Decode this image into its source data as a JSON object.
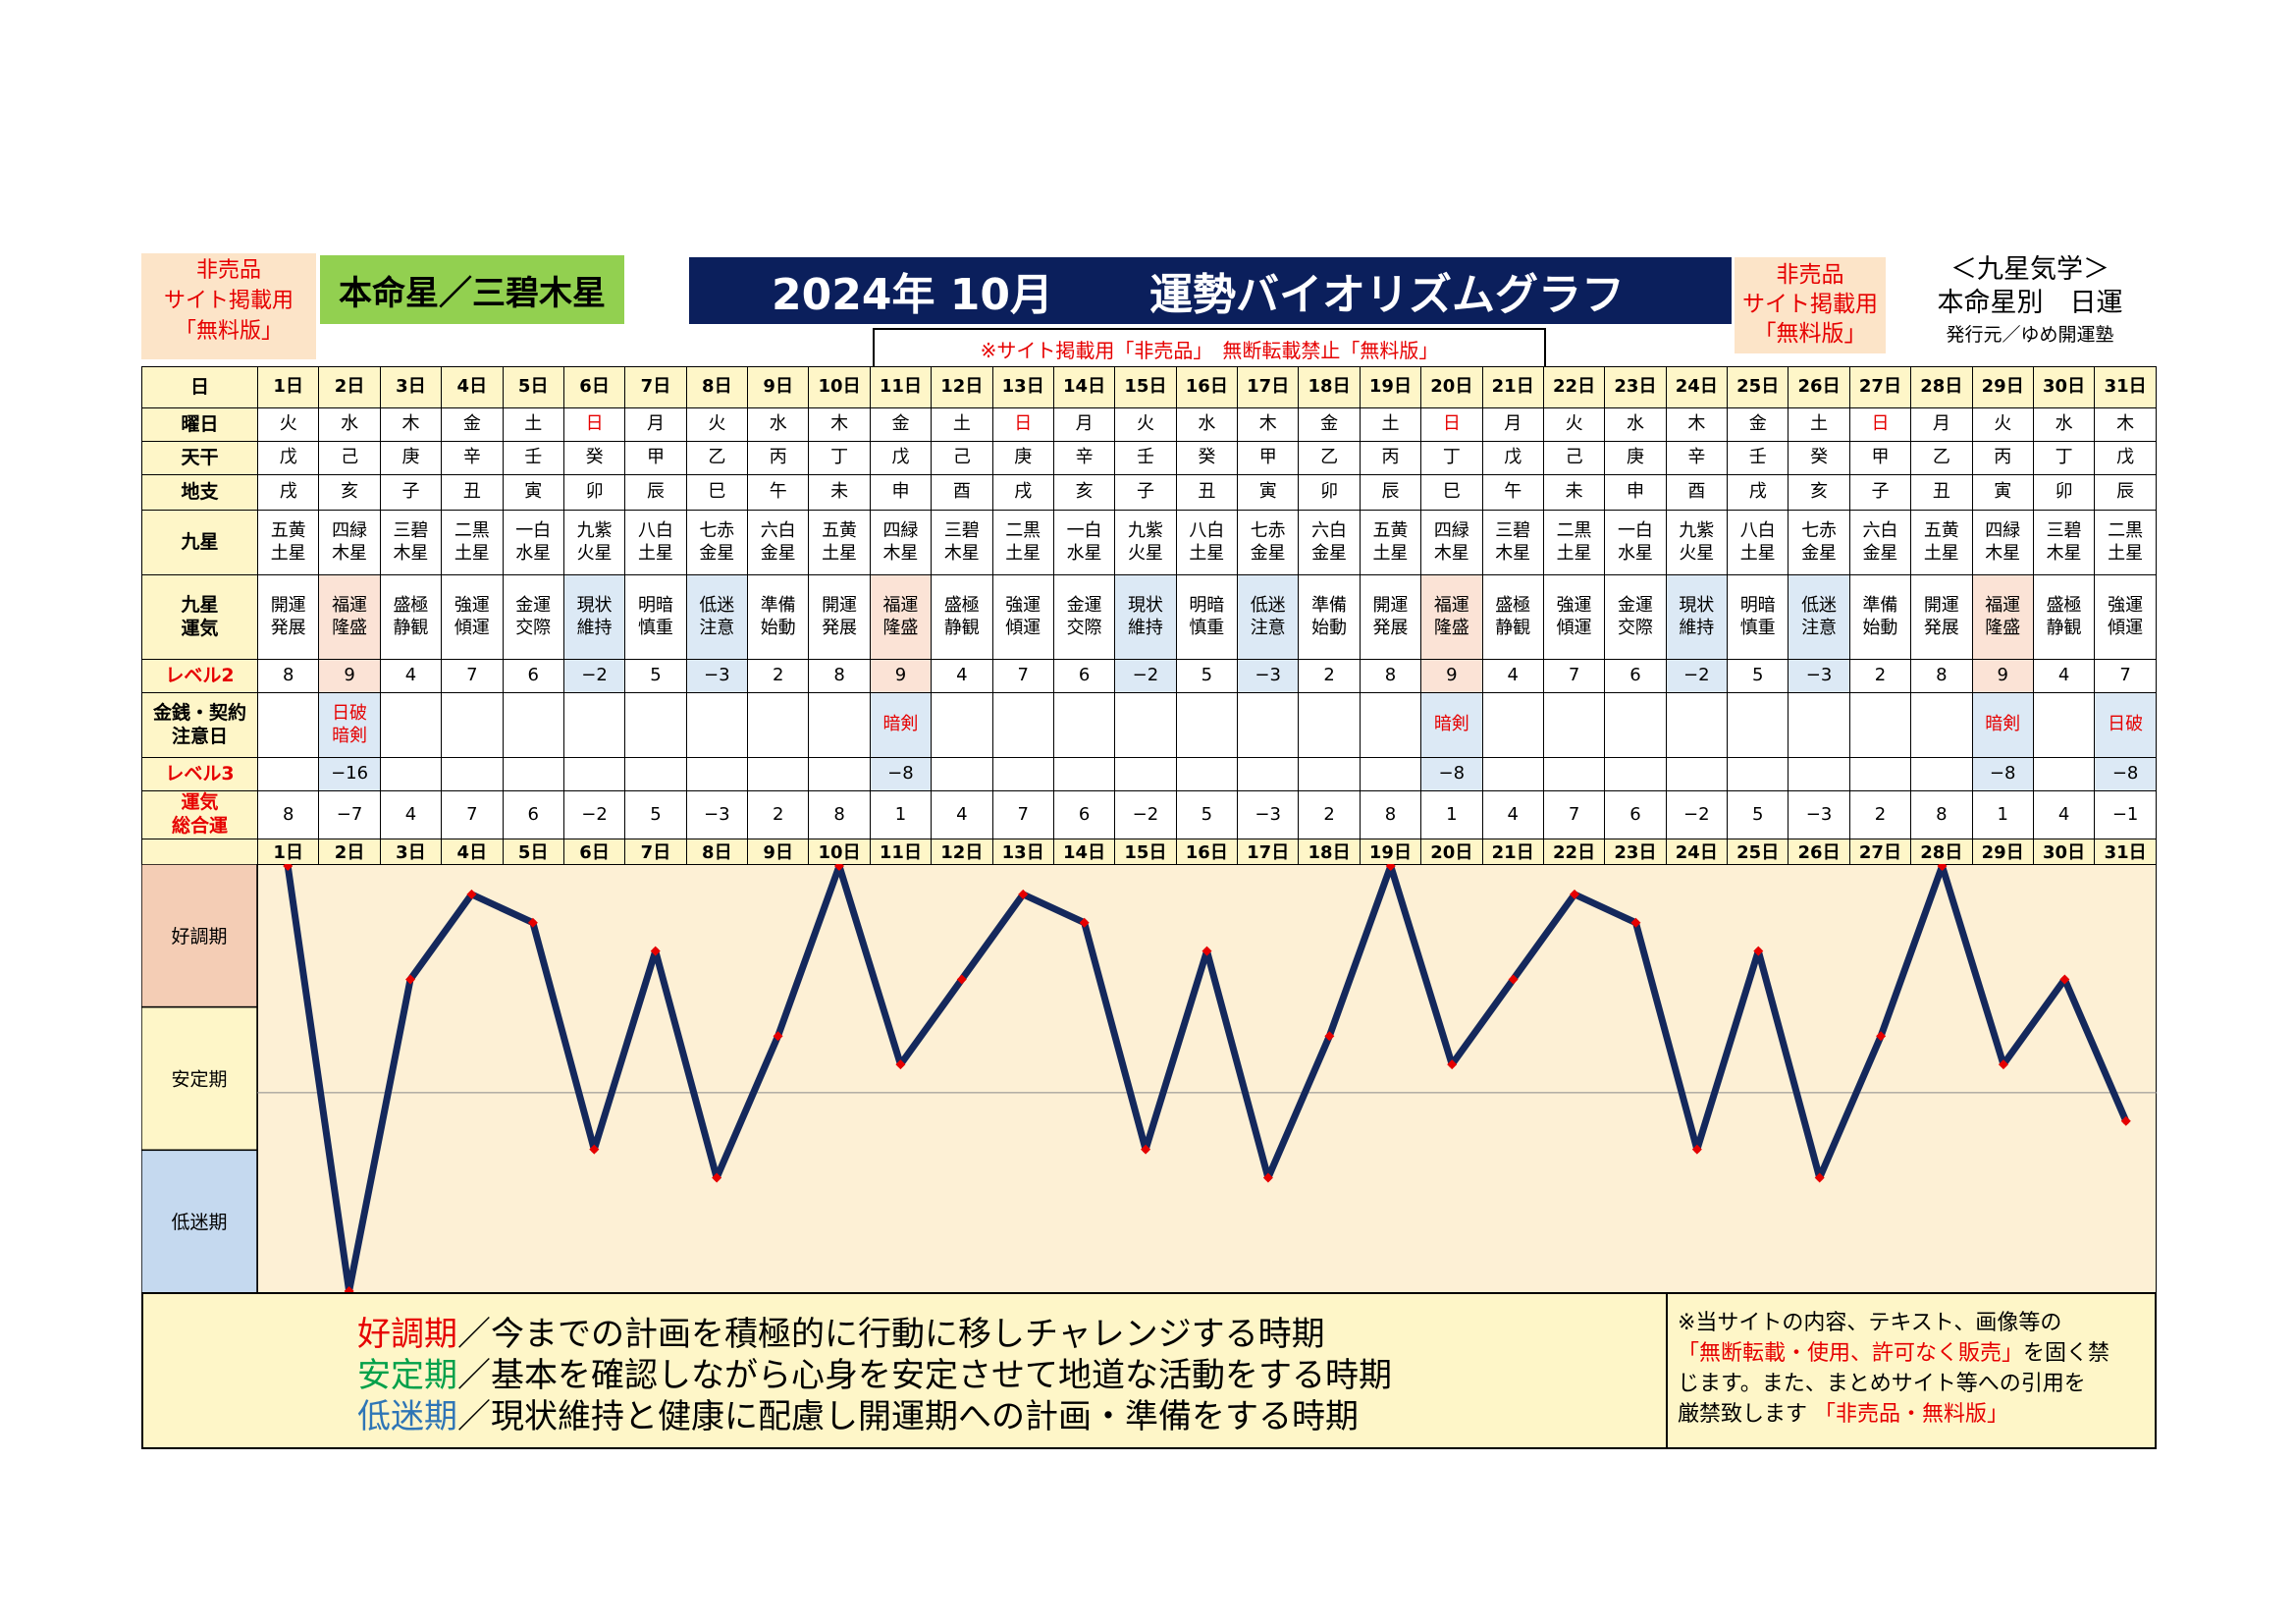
{
  "header": {
    "left_note": [
      "非売品",
      "サイト掲載用",
      "「無料版」"
    ],
    "honmei": "本命星／三碧木星",
    "title_year": "2024年 10月",
    "title_main": "運勢バイオリズムグラフ",
    "notice": "※サイト掲載用「非売品」　無断転載禁止「無料版」",
    "right_note": [
      "非売品",
      "サイト掲載用",
      "「無料版」"
    ],
    "corner": [
      "＜九星気学＞",
      "本命星別　日運",
      "発行元／ゆめ開運塾"
    ]
  },
  "row_labels": {
    "day": "日",
    "weekday": "曜日",
    "tenkan": "天干",
    "chishi": "地支",
    "kusei": "九星",
    "kusei_unki": [
      "九星",
      "運気"
    ],
    "level2": "レベル2",
    "kinsen": [
      "金銭・契約",
      "注意日"
    ],
    "level3": "レベル3",
    "sogo": [
      "運気",
      "総合運"
    ]
  },
  "days": [
    "1日",
    "2日",
    "3日",
    "4日",
    "5日",
    "6日",
    "7日",
    "8日",
    "9日",
    "10日",
    "11日",
    "12日",
    "13日",
    "14日",
    "15日",
    "16日",
    "17日",
    "18日",
    "19日",
    "20日",
    "21日",
    "22日",
    "23日",
    "24日",
    "25日",
    "26日",
    "27日",
    "28日",
    "29日",
    "30日",
    "31日"
  ],
  "weekdays": [
    "火",
    "水",
    "木",
    "金",
    "土",
    "日",
    "月",
    "火",
    "水",
    "木",
    "金",
    "土",
    "日",
    "月",
    "火",
    "水",
    "木",
    "金",
    "土",
    "日",
    "月",
    "火",
    "水",
    "木",
    "金",
    "土",
    "日",
    "月",
    "火",
    "水",
    "木"
  ],
  "tenkan": [
    "戊",
    "己",
    "庚",
    "辛",
    "壬",
    "癸",
    "甲",
    "乙",
    "丙",
    "丁",
    "戊",
    "己",
    "庚",
    "辛",
    "壬",
    "癸",
    "甲",
    "乙",
    "丙",
    "丁",
    "戊",
    "己",
    "庚",
    "辛",
    "壬",
    "癸",
    "甲",
    "乙",
    "丙",
    "丁",
    "戊"
  ],
  "chishi": [
    "戌",
    "亥",
    "子",
    "丑",
    "寅",
    "卯",
    "辰",
    "巳",
    "午",
    "未",
    "申",
    "酉",
    "戌",
    "亥",
    "子",
    "丑",
    "寅",
    "卯",
    "辰",
    "巳",
    "午",
    "未",
    "申",
    "酉",
    "戌",
    "亥",
    "子",
    "丑",
    "寅",
    "卯",
    "辰"
  ],
  "kusei": [
    "五黄土星",
    "四緑木星",
    "三碧木星",
    "二黒土星",
    "一白水星",
    "九紫火星",
    "八白土星",
    "七赤金星",
    "六白金星",
    "五黄土星",
    "四緑木星",
    "三碧木星",
    "二黒土星",
    "一白水星",
    "九紫火星",
    "八白土星",
    "七赤金星",
    "六白金星",
    "五黄土星",
    "四緑木星",
    "三碧木星",
    "二黒土星",
    "一白水星",
    "九紫火星",
    "八白土星",
    "七赤金星",
    "六白金星",
    "五黄土星",
    "四緑木星",
    "三碧木星",
    "二黒土星"
  ],
  "unki": [
    "開運発展",
    "福運隆盛",
    "盛極静観",
    "強運傾運",
    "金運交際",
    "現状維持",
    "明暗慎重",
    "低迷注意",
    "準備始動",
    "開運発展",
    "福運隆盛",
    "盛極静観",
    "強運傾運",
    "金運交際",
    "現状維持",
    "明暗慎重",
    "低迷注意",
    "準備始動",
    "開運発展",
    "福運隆盛",
    "盛極静観",
    "強運傾運",
    "金運交際",
    "現状維持",
    "明暗慎重",
    "低迷注意",
    "準備始動",
    "開運発展",
    "福運隆盛",
    "盛極静観",
    "強運傾運"
  ],
  "level2": [
    "8",
    "9",
    "4",
    "7",
    "6",
    "−2",
    "5",
    "−3",
    "2",
    "8",
    "9",
    "4",
    "7",
    "6",
    "−2",
    "5",
    "−3",
    "2",
    "8",
    "9",
    "4",
    "7",
    "6",
    "−2",
    "5",
    "−3",
    "2",
    "8",
    "9",
    "4",
    "7"
  ],
  "kinsen": [
    "",
    "日破暗剣",
    "",
    "",
    "",
    "",
    "",
    "",
    "",
    "",
    "暗剣",
    "",
    "",
    "",
    "",
    "",
    "",
    "",
    "",
    "暗剣",
    "",
    "",
    "",
    "",
    "",
    "",
    "",
    "",
    "暗剣",
    "",
    "日破"
  ],
  "level3": [
    "",
    "−16",
    "",
    "",
    "",
    "",
    "",
    "",
    "",
    "",
    "−8",
    "",
    "",
    "",
    "",
    "",
    "",
    "",
    "",
    "−8",
    "",
    "",
    "",
    "",
    "",
    "",
    "",
    "",
    "−8",
    "",
    "−8"
  ],
  "sogo": [
    "8",
    "−7",
    "4",
    "7",
    "6",
    "−2",
    "5",
    "−3",
    "2",
    "8",
    "1",
    "4",
    "7",
    "6",
    "−2",
    "5",
    "−3",
    "2",
    "8",
    "1",
    "4",
    "7",
    "6",
    "−2",
    "5",
    "−3",
    "2",
    "8",
    "1",
    "4",
    "−1"
  ],
  "zones": {
    "good": "好調期",
    "stable": "安定期",
    "low": "低迷期"
  },
  "legend": {
    "good_term": "好調期",
    "good_text": "／今までの計画を積極的に行動に移しチャレンジする時期",
    "stable_term": "安定期",
    "stable_text": "／基本を確認しながら心身を安定させて地道な活動をする時期",
    "low_term": "低迷期",
    "low_text": "／現状維持と健康に配慮し開運期への計画・準備をする時期"
  },
  "disclaimer": {
    "l1": "※当サイトの内容、テキスト、画像等の",
    "l2_red": "「無断転載・使用、許可なく販売」",
    "l2": "を固く禁",
    "l3": "じます。また、まとめサイト等への引用を",
    "l4": "厳禁致します",
    "l4_red": "「非売品・無料版」"
  },
  "colors": {
    "line": "#14285c",
    "marker": "#e60000",
    "navy": "#0b1f5c",
    "green": "#92d050",
    "good_zone": "#f4cdb5",
    "stable_zone": "#fef6c8",
    "low_zone": "#c5d9ef",
    "plot_bg": "#fdf0d5",
    "blue_cell": "#dce9f5",
    "pink_cell": "#fbe3d6"
  },
  "chart_data": {
    "type": "line",
    "x": [
      1,
      2,
      3,
      4,
      5,
      6,
      7,
      8,
      9,
      10,
      11,
      12,
      13,
      14,
      15,
      16,
      17,
      18,
      19,
      20,
      21,
      22,
      23,
      24,
      25,
      26,
      27,
      28,
      29,
      30,
      31
    ],
    "series": [
      {
        "values": [
          8,
          -7,
          4,
          7,
          6,
          -2,
          5,
          -3,
          2,
          8,
          1,
          4,
          7,
          6,
          -2,
          5,
          -3,
          2,
          8,
          1,
          4,
          7,
          6,
          -2,
          5,
          -3,
          2,
          8,
          1,
          4,
          -1
        ]
      }
    ],
    "ylim": [
      -7,
      8
    ],
    "zones": [
      "好調期",
      "安定期",
      "低迷期"
    ],
    "grid": false
  }
}
